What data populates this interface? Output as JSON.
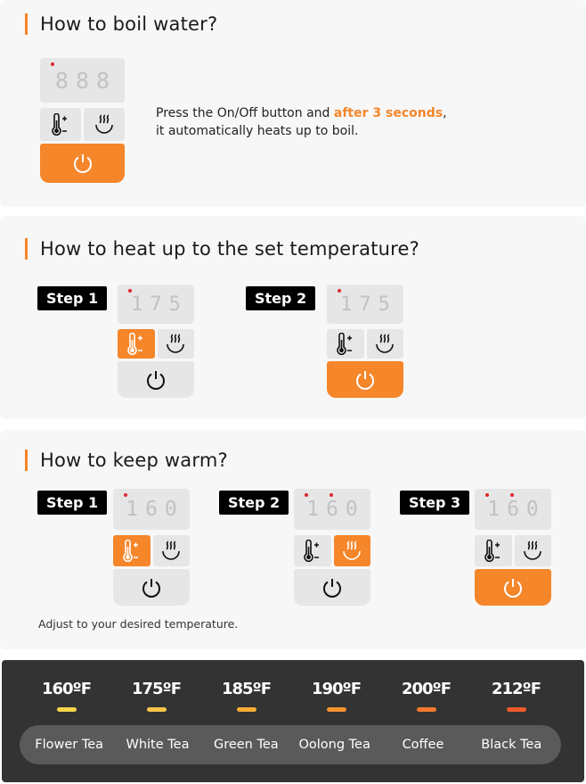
{
  "colors": {
    "accent": "#f5862a",
    "panel": "#e6e6e6",
    "dark_bg": "#333333"
  },
  "boil": {
    "title": "How to boil water?",
    "text_a": "Press the On/Off button and ",
    "text_highlight": "after 3 seconds",
    "text_b": ",",
    "text_c": "it automatically heats up to boil.",
    "widget": {
      "digits": "888",
      "dots": 1,
      "active": "power"
    }
  },
  "heat": {
    "title": "How to heat up to the set temperature?",
    "steps": [
      {
        "label": "Step 1",
        "digits": "175",
        "dots": 1,
        "active": "temp"
      },
      {
        "label": "Step 2",
        "digits": "175",
        "dots": 1,
        "active": "power"
      }
    ]
  },
  "warm": {
    "title": "How to keep warm?",
    "note": "Adjust to your desired temperature.",
    "steps": [
      {
        "label": "Step 1",
        "digits": "160",
        "dots": 1,
        "active": "temp"
      },
      {
        "label": "Step 2",
        "digits": "160",
        "dots": 2,
        "active": "warm"
      },
      {
        "label": "Step 3",
        "digits": "160",
        "dots": 2,
        "active": "power"
      }
    ]
  },
  "guide": [
    {
      "temp": "160ºF",
      "name": "Flower Tea",
      "color": "#f7d44a"
    },
    {
      "temp": "175ºF",
      "name": "White Tea",
      "color": "#f7c648"
    },
    {
      "temp": "185ºF",
      "name": "Green Tea",
      "color": "#f5ad34"
    },
    {
      "temp": "190ºF",
      "name": "Oolong Tea",
      "color": "#f59330"
    },
    {
      "temp": "200ºF",
      "name": "Coffee",
      "color": "#f57a2e"
    },
    {
      "temp": "212ºF",
      "name": "Black Tea",
      "color": "#ee5a2a"
    }
  ]
}
